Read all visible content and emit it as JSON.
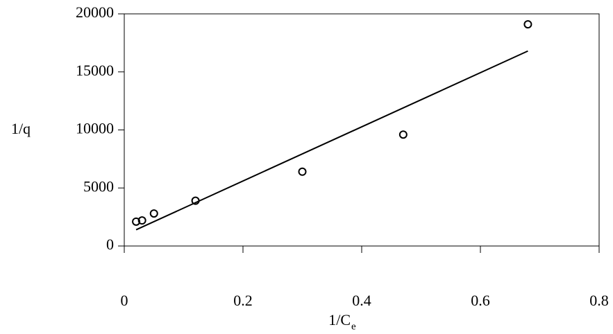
{
  "chart_data": {
    "type": "scatter",
    "xlabel": "1/C",
    "xlabel_subscript": "e",
    "ylabel": "1/q",
    "series": [
      {
        "color": "#000000",
        "mode": "markers",
        "x": [
          0.02,
          0.03,
          0.05,
          0.12,
          0.3,
          0.47,
          0.68
        ],
        "values": [
          2100,
          2200,
          2800,
          3900,
          6400,
          9600,
          19100
        ]
      },
      {
        "color": "#000000",
        "mode": "line",
        "x": [
          0.02,
          0.68
        ],
        "values": [
          1400,
          16800
        ]
      }
    ],
    "xlim": [
      0,
      0.8
    ],
    "xticks": [
      0,
      0.2,
      0.4,
      0.6,
      0.8
    ],
    "ylim": [
      0,
      20000
    ],
    "yticks": [
      0,
      5000,
      10000,
      15000,
      20000
    ]
  }
}
